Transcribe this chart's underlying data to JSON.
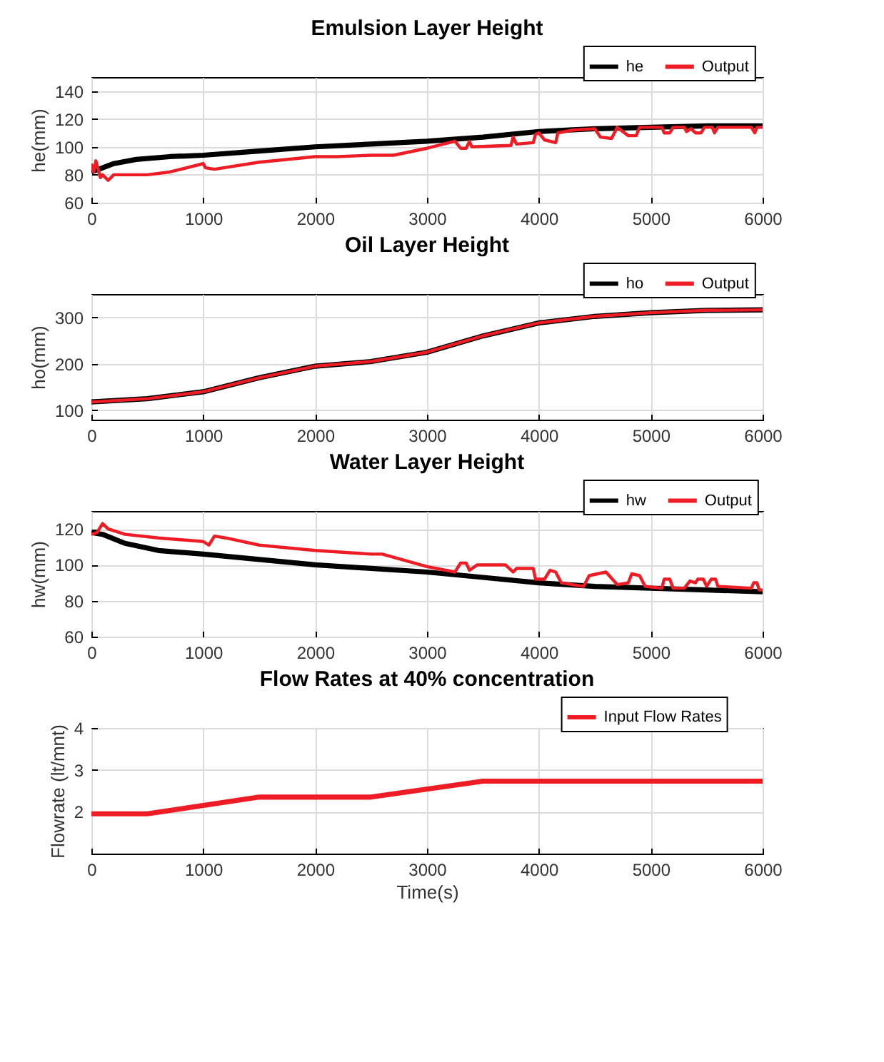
{
  "chart_data": [
    {
      "type": "line",
      "title": "Emulsion Layer Height",
      "ylabel": "he(mm)",
      "xlim": [
        0,
        6000
      ],
      "xticks": [
        0,
        1000,
        2000,
        3000,
        4000,
        5000,
        6000
      ],
      "ylim": [
        60,
        150
      ],
      "yticks": [
        60,
        80,
        100,
        120,
        140
      ],
      "grid": true,
      "legend": "top right",
      "series": [
        {
          "name": "he",
          "color": "#000000",
          "x": [
            0,
            100,
            200,
            400,
            700,
            1000,
            1500,
            2000,
            2500,
            3000,
            3500,
            4000,
            4500,
            5000,
            5500,
            6000
          ],
          "values": [
            82,
            85,
            88,
            91,
            93,
            94,
            97,
            100,
            102,
            104,
            107,
            111,
            113,
            114,
            115,
            115
          ]
        },
        {
          "name": "Output",
          "color": "#ee1c24",
          "x": [
            0,
            20,
            40,
            60,
            80,
            100,
            150,
            200,
            500,
            700,
            1000,
            1020,
            1100,
            1500,
            2000,
            2200,
            2500,
            2700,
            3000,
            3250,
            3300,
            3350,
            3380,
            3400,
            3750,
            3770,
            3800,
            3950,
            3970,
            4000,
            4050,
            4150,
            4170,
            4300,
            4500,
            4550,
            4650,
            4700,
            4800,
            4870,
            4900,
            5100,
            5120,
            5170,
            5200,
            5300,
            5320,
            5360,
            5400,
            5450,
            5480,
            5550,
            5570,
            5600,
            5900,
            5930,
            5950,
            6000
          ],
          "values": [
            88,
            82,
            90,
            84,
            78,
            80,
            76,
            80,
            80,
            82,
            88,
            85,
            84,
            89,
            93,
            93,
            94,
            94,
            99,
            104,
            99,
            99,
            104,
            100,
            101,
            107,
            102,
            103,
            109,
            110,
            105,
            103,
            110,
            112,
            113,
            107,
            106,
            114,
            108,
            108,
            114,
            114,
            110,
            110,
            114,
            114,
            111,
            113,
            110,
            110,
            114,
            114,
            110,
            114,
            114,
            110,
            114,
            114
          ]
        }
      ]
    },
    {
      "type": "line",
      "title": "Oil Layer Height",
      "ylabel": "ho(mm)",
      "xlim": [
        0,
        6000
      ],
      "xticks": [
        0,
        1000,
        2000,
        3000,
        4000,
        5000,
        6000
      ],
      "ylim": [
        80,
        350
      ],
      "yticks": [
        100,
        200,
        300
      ],
      "grid": true,
      "legend": "top right",
      "series": [
        {
          "name": "ho",
          "color": "#000000",
          "x": [
            0,
            500,
            1000,
            1500,
            2000,
            2500,
            3000,
            3500,
            4000,
            4500,
            5000,
            5500,
            6000
          ],
          "values": [
            118,
            125,
            140,
            170,
            195,
            205,
            225,
            260,
            288,
            302,
            310,
            315,
            316
          ]
        },
        {
          "name": "Output",
          "color": "#ee1c24",
          "x": [
            0,
            500,
            1000,
            1500,
            2000,
            2500,
            3000,
            3500,
            4000,
            4500,
            5000,
            5500,
            6000
          ],
          "values": [
            118,
            125,
            140,
            170,
            195,
            205,
            225,
            260,
            288,
            302,
            310,
            315,
            316
          ]
        }
      ]
    },
    {
      "type": "line",
      "title": "Water Layer Height",
      "ylabel": "hw(mm)",
      "xlim": [
        0,
        6000
      ],
      "xticks": [
        0,
        1000,
        2000,
        3000,
        4000,
        5000,
        6000
      ],
      "ylim": [
        60,
        130
      ],
      "yticks": [
        60,
        80,
        100,
        120
      ],
      "grid": true,
      "legend": "top right",
      "series": [
        {
          "name": "hw",
          "color": "#000000",
          "x": [
            0,
            100,
            300,
            600,
            1000,
            1500,
            2000,
            2500,
            3000,
            3500,
            4000,
            4500,
            5000,
            5500,
            6000
          ],
          "values": [
            118,
            117,
            112,
            108,
            106,
            103,
            100,
            98,
            96,
            93,
            90,
            88,
            87,
            86,
            85
          ]
        },
        {
          "name": "Output",
          "color": "#ee1c24",
          "x": [
            0,
            50,
            100,
            150,
            300,
            600,
            1000,
            1050,
            1100,
            1200,
            1500,
            2000,
            2500,
            2600,
            3000,
            3250,
            3300,
            3350,
            3380,
            3450,
            3700,
            3770,
            3800,
            3950,
            3970,
            4050,
            4100,
            4150,
            4200,
            4400,
            4450,
            4600,
            4700,
            4800,
            4830,
            4900,
            4950,
            5100,
            5120,
            5170,
            5200,
            5300,
            5350,
            5400,
            5420,
            5470,
            5500,
            5540,
            5580,
            5600,
            5900,
            5920,
            5950,
            5970,
            6000
          ],
          "values": [
            117,
            118,
            123,
            120,
            117,
            115,
            113,
            111,
            116,
            115,
            111,
            108,
            106,
            106,
            99,
            96,
            101,
            101,
            97,
            100,
            100,
            96,
            98,
            98,
            92,
            92,
            97,
            96,
            90,
            88,
            94,
            96,
            89,
            90,
            95,
            94,
            88,
            87,
            92,
            92,
            87,
            87,
            91,
            90,
            92,
            92,
            88,
            92,
            92,
            88,
            87,
            90,
            90,
            86,
            86
          ]
        }
      ]
    },
    {
      "type": "line",
      "title": "Flow Rates at 40% concentration",
      "xlabel": "Time(s)",
      "ylabel": "Flowrate (lt/mnt)",
      "xlim": [
        0,
        6000
      ],
      "xticks": [
        0,
        1000,
        2000,
        3000,
        4000,
        5000,
        6000
      ],
      "ylim": [
        1,
        4
      ],
      "yticks": [
        2,
        3,
        4
      ],
      "grid": true,
      "legend": "top right",
      "series": [
        {
          "name": "Input Flow Rates",
          "color": "#ee1c24",
          "x": [
            0,
            500,
            1500,
            2500,
            3500,
            6000
          ],
          "values": [
            1.95,
            1.95,
            2.35,
            2.35,
            2.73,
            2.73
          ]
        }
      ]
    }
  ]
}
